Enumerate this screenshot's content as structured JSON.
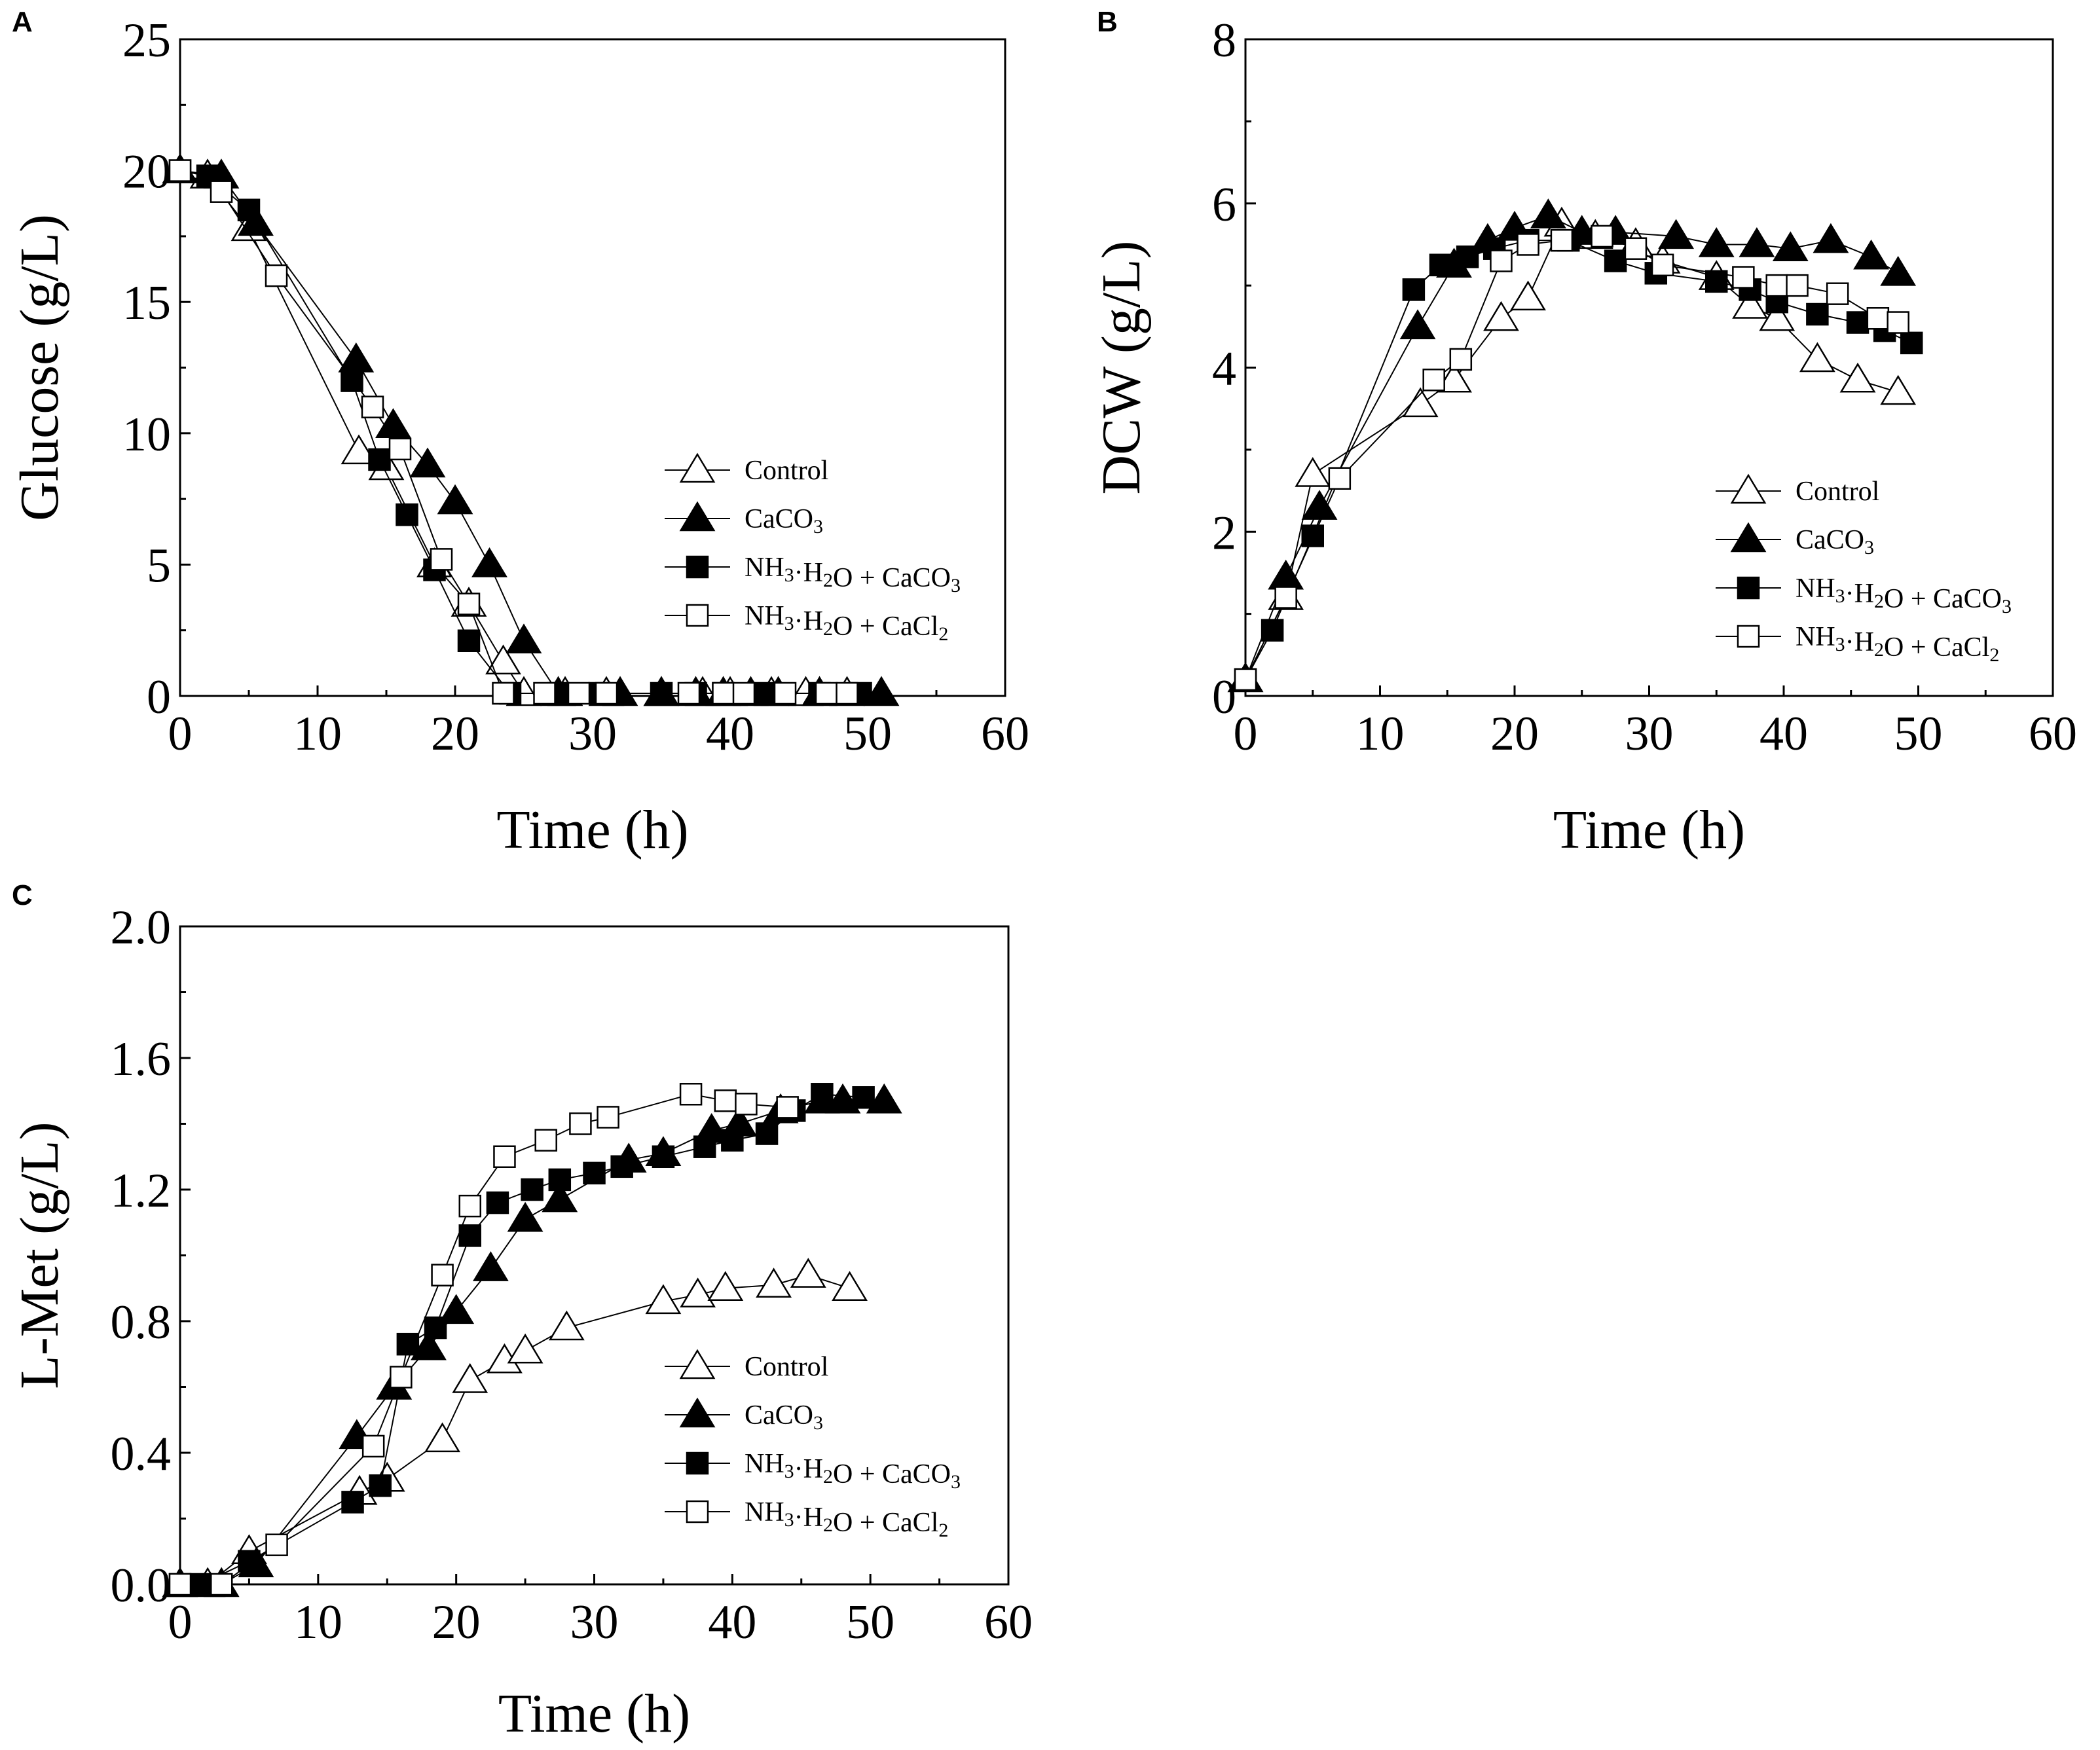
{
  "chart_data": [
    {
      "panel": "A",
      "type": "line",
      "xlabel": "Time (h)",
      "ylabel": "Glucose (g/L)",
      "xlim": [
        0,
        60
      ],
      "ylim": [
        0,
        25
      ],
      "xticks": [
        "0",
        "10",
        "20",
        "30",
        "40",
        "50",
        "60"
      ],
      "yticks": [
        "0",
        "5",
        "10",
        "15",
        "20",
        "25"
      ],
      "legend_position": "center-right",
      "series": [
        {
          "name": "Control",
          "marker": "triangle-open",
          "x": [
            0,
            2,
            5,
            13,
            15,
            18.5,
            21,
            23.5,
            25,
            28,
            31,
            35,
            38,
            40,
            43,
            45.5,
            48.5
          ],
          "y": [
            20,
            19.8,
            17.8,
            9.3,
            8.7,
            5,
            3.5,
            1.3,
            0.1,
            0.1,
            0.1,
            0.1,
            0.1,
            0.1,
            0.1,
            0.1,
            0.1
          ]
        },
        {
          "name": "CaCO3",
          "marker": "triangle-filled",
          "x": [
            0,
            3,
            5.5,
            12.8,
            15.5,
            18,
            20,
            22.5,
            25,
            27.5,
            32,
            35,
            37.5,
            39.5,
            41.5,
            43.5,
            46.5,
            51
          ],
          "y": [
            20,
            19.8,
            18,
            12.8,
            10.3,
            8.8,
            7.4,
            5,
            2.1,
            0.1,
            0.1,
            0.1,
            0.1,
            0.1,
            0.1,
            0.1,
            0.1,
            0.1
          ]
        },
        {
          "name": "NH3·H2O + CaCO3",
          "marker": "square-filled",
          "x": [
            0,
            2,
            5,
            12.5,
            14.5,
            16.5,
            18.5,
            21,
            24,
            27.5,
            30.5,
            35,
            37.5,
            39.5,
            42.5,
            46.5,
            49.5
          ],
          "y": [
            20,
            19.8,
            18.5,
            12,
            9,
            6.9,
            4.8,
            2.1,
            0.1,
            0.1,
            0.1,
            0.1,
            0.1,
            0.1,
            0.1,
            0.1,
            0.1
          ]
        },
        {
          "name": "NH3·H2O + CaCl2",
          "marker": "square-open",
          "x": [
            0,
            3,
            7,
            14,
            16,
            19,
            21,
            23.5,
            26.5,
            29,
            31,
            37,
            39.5,
            41,
            44,
            47,
            48.5
          ],
          "y": [
            20,
            19.2,
            16,
            11,
            9.4,
            5.2,
            3.5,
            0.1,
            0.1,
            0.1,
            0.1,
            0.1,
            0.1,
            0.1,
            0.1,
            0.1,
            0.1
          ]
        }
      ]
    },
    {
      "panel": "B",
      "type": "line",
      "xlabel": "Time (h)",
      "ylabel": "DCW (g/L)",
      "xlim": [
        0,
        60
      ],
      "ylim": [
        0,
        8
      ],
      "xticks": [
        "0",
        "10",
        "20",
        "30",
        "40",
        "50",
        "60"
      ],
      "yticks": [
        "0",
        "2",
        "4",
        "6",
        "8"
      ],
      "legend_position": "center-right",
      "series": [
        {
          "name": "Control",
          "marker": "triangle-open",
          "x": [
            0,
            3,
            5,
            13,
            15.5,
            19,
            21,
            23.5,
            26,
            29,
            31,
            35,
            37.5,
            39.5,
            42.5,
            45.5,
            48.5
          ],
          "y": [
            0.2,
            1.2,
            2.7,
            3.55,
            3.85,
            4.6,
            4.85,
            5.75,
            5.6,
            5.5,
            5.3,
            5.1,
            4.75,
            4.6,
            4.1,
            3.85,
            3.7
          ]
        },
        {
          "name": "CaCO3",
          "marker": "triangle-filled",
          "x": [
            0,
            3,
            5.5,
            12.8,
            15.5,
            18,
            20,
            22.5,
            25,
            27.5,
            32,
            35,
            38,
            40.5,
            43.5,
            46.5,
            48.5
          ],
          "y": [
            0.2,
            1.45,
            2.3,
            4.5,
            5.25,
            5.55,
            5.7,
            5.85,
            5.65,
            5.65,
            5.6,
            5.5,
            5.5,
            5.45,
            5.55,
            5.35,
            5.15
          ]
        },
        {
          "name": "NH3·H2O + CaCO3",
          "marker": "square-filled",
          "x": [
            0,
            2,
            5,
            12.5,
            14.5,
            16.5,
            18.5,
            21,
            24,
            27.5,
            30.5,
            35,
            37.5,
            39.5,
            42.5,
            45.5,
            47.5,
            49.5
          ],
          "y": [
            0.2,
            0.8,
            1.95,
            4.95,
            5.25,
            5.35,
            5.45,
            5.55,
            5.55,
            5.3,
            5.15,
            5.05,
            4.95,
            4.8,
            4.65,
            4.55,
            4.45,
            4.3
          ]
        },
        {
          "name": "NH3·H2O + CaCl2",
          "marker": "square-open",
          "x": [
            0,
            3,
            7,
            14,
            16,
            19,
            21,
            23.5,
            26.5,
            29,
            31,
            37,
            39.5,
            41,
            44,
            47,
            48.5
          ],
          "y": [
            0.2,
            1.2,
            2.65,
            3.85,
            4.1,
            5.3,
            5.5,
            5.55,
            5.6,
            5.45,
            5.25,
            5.1,
            5,
            5,
            4.9,
            4.6,
            4.55
          ]
        }
      ]
    },
    {
      "panel": "C",
      "type": "line",
      "xlabel": "Time (h)",
      "ylabel": "L-Met (g/L)",
      "xlim": [
        0,
        60
      ],
      "ylim": [
        0,
        2.0
      ],
      "xticks": [
        "0",
        "10",
        "20",
        "30",
        "40",
        "50",
        "60"
      ],
      "yticks": [
        "0.0",
        "0.4",
        "0.8",
        "1.2",
        "1.6",
        "2.0"
      ],
      "legend_position": "center-right",
      "series": [
        {
          "name": "Control",
          "marker": "triangle-open",
          "x": [
            0,
            2,
            5,
            13,
            15,
            19,
            21,
            23.5,
            25,
            28,
            35,
            37.5,
            39.5,
            43,
            45.5,
            48.5
          ],
          "y": [
            0,
            0,
            0.1,
            0.28,
            0.32,
            0.44,
            0.62,
            0.68,
            0.71,
            0.78,
            0.86,
            0.88,
            0.9,
            0.91,
            0.94,
            0.9
          ]
        },
        {
          "name": "CaCO3",
          "marker": "triangle-filled",
          "x": [
            0,
            3,
            5.5,
            12.8,
            15.5,
            18,
            20,
            22.5,
            25,
            27.5,
            32.5,
            35,
            38.5,
            40.5,
            43.5,
            46.5,
            48,
            51
          ],
          "y": [
            0,
            0,
            0.06,
            0.45,
            0.6,
            0.72,
            0.83,
            0.96,
            1.11,
            1.17,
            1.29,
            1.31,
            1.38,
            1.4,
            1.44,
            1.47,
            1.47,
            1.47
          ]
        },
        {
          "name": "NH3·H2O + CaCO3",
          "marker": "square-filled",
          "x": [
            0,
            1.5,
            5,
            12.5,
            14.5,
            16.5,
            18.5,
            21,
            23,
            25.5,
            27.5,
            30,
            32,
            35,
            38,
            40,
            42.5,
            44.5,
            46.5,
            49.5
          ],
          "y": [
            0,
            0,
            0.07,
            0.25,
            0.3,
            0.73,
            0.78,
            1.06,
            1.16,
            1.2,
            1.23,
            1.25,
            1.27,
            1.3,
            1.33,
            1.35,
            1.37,
            1.44,
            1.49,
            1.48
          ]
        },
        {
          "name": "NH3·H2O + CaCl2",
          "marker": "square-open",
          "x": [
            0,
            3,
            7,
            14,
            16,
            19,
            21,
            23.5,
            26.5,
            29,
            31,
            37,
            39.5,
            41,
            44
          ],
          "y": [
            0,
            0,
            0.12,
            0.42,
            0.63,
            0.94,
            1.15,
            1.3,
            1.35,
            1.4,
            1.42,
            1.49,
            1.47,
            1.46,
            1.45
          ]
        }
      ]
    }
  ]
}
